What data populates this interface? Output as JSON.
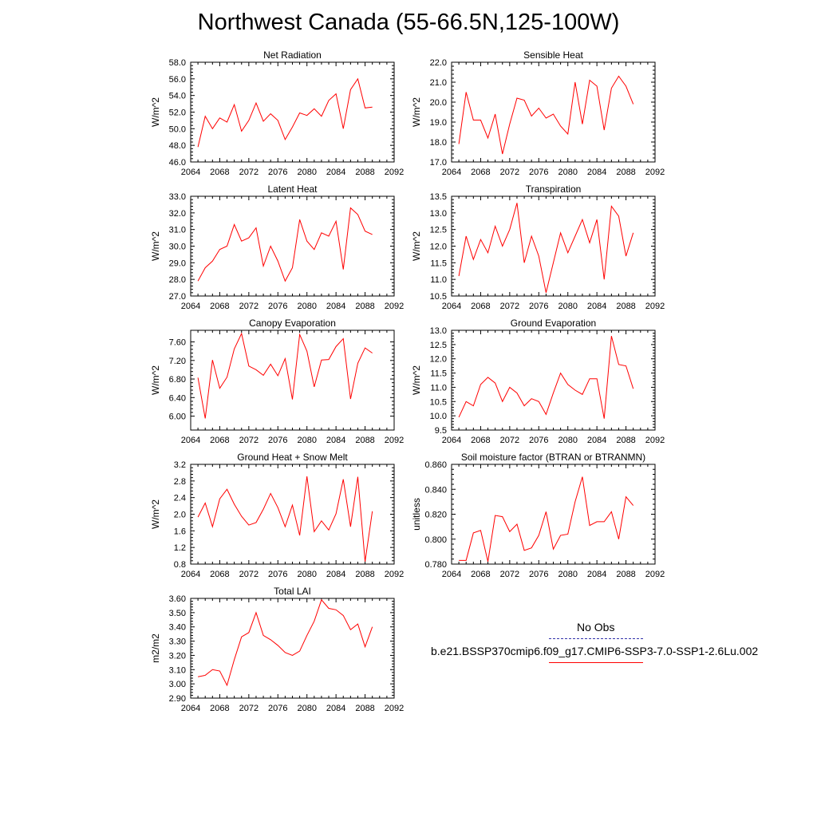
{
  "title": "Northwest Canada (55-66.5N,125-100W)",
  "legend": {
    "obs_label": "No Obs",
    "obs_color": "#3333aa",
    "model_label": "b.e21.BSSP370cmip6.f09_g17.CMIP6-SSP3-7.0-SSP1-2.6Lu.002",
    "model_color": "#ff0000"
  },
  "chart_data": [
    {
      "type": "line",
      "title": "Net Radiation",
      "ylabel": "W/m^2",
      "xlim": [
        2064,
        2092
      ],
      "xticks": [
        "2064",
        "2068",
        "2072",
        "2076",
        "2080",
        "2084",
        "2088",
        "2092"
      ],
      "ylim": [
        46.0,
        58.0
      ],
      "yticks": [
        "46.0",
        "48.0",
        "50.0",
        "52.0",
        "54.0",
        "56.0",
        "58.0"
      ],
      "x": [
        2065,
        2066,
        2067,
        2068,
        2069,
        2070,
        2071,
        2072,
        2073,
        2074,
        2075,
        2076,
        2077,
        2078,
        2079,
        2080,
        2081,
        2082,
        2083,
        2084,
        2085,
        2086,
        2087,
        2088,
        2089
      ],
      "series": [
        {
          "values": [
            47.8,
            51.5,
            50.0,
            51.3,
            50.8,
            52.9,
            49.7,
            51.0,
            53.1,
            50.9,
            51.8,
            51.0,
            48.7,
            50.2,
            51.9,
            51.6,
            52.4,
            51.5,
            53.4,
            54.2,
            50.0,
            54.7,
            56.0,
            52.5,
            52.6
          ],
          "color": "#ff0000"
        }
      ]
    },
    {
      "type": "line",
      "title": "Sensible Heat",
      "ylabel": "W/m^2",
      "xlim": [
        2064,
        2092
      ],
      "xticks": [
        "2064",
        "2068",
        "2072",
        "2076",
        "2080",
        "2084",
        "2088",
        "2092"
      ],
      "ylim": [
        17.0,
        22.0
      ],
      "yticks": [
        "17.0",
        "18.0",
        "19.0",
        "20.0",
        "21.0",
        "22.0"
      ],
      "x": [
        2065,
        2066,
        2067,
        2068,
        2069,
        2070,
        2071,
        2072,
        2073,
        2074,
        2075,
        2076,
        2077,
        2078,
        2079,
        2080,
        2081,
        2082,
        2083,
        2084,
        2085,
        2086,
        2087,
        2088,
        2089
      ],
      "series": [
        {
          "values": [
            17.9,
            20.5,
            19.1,
            19.1,
            18.2,
            19.4,
            17.4,
            18.9,
            20.2,
            20.1,
            19.3,
            19.7,
            19.2,
            19.4,
            18.8,
            18.4,
            21.0,
            18.9,
            21.1,
            20.8,
            18.6,
            20.7,
            21.3,
            20.8,
            19.9
          ],
          "color": "#ff0000"
        }
      ]
    },
    {
      "type": "line",
      "title": "Latent Heat",
      "ylabel": "W/m^2",
      "xlim": [
        2064,
        2092
      ],
      "xticks": [
        "2064",
        "2068",
        "2072",
        "2076",
        "2080",
        "2084",
        "2088",
        "2092"
      ],
      "ylim": [
        27.0,
        33.0
      ],
      "yticks": [
        "27.0",
        "28.0",
        "29.0",
        "30.0",
        "31.0",
        "32.0",
        "33.0"
      ],
      "x": [
        2065,
        2066,
        2067,
        2068,
        2069,
        2070,
        2071,
        2072,
        2073,
        2074,
        2075,
        2076,
        2077,
        2078,
        2079,
        2080,
        2081,
        2082,
        2083,
        2084,
        2085,
        2086,
        2087,
        2088,
        2089
      ],
      "series": [
        {
          "values": [
            27.9,
            28.7,
            29.1,
            29.8,
            30.0,
            31.3,
            30.3,
            30.5,
            31.1,
            28.8,
            30.0,
            29.1,
            27.9,
            28.7,
            31.6,
            30.3,
            29.8,
            30.8,
            30.6,
            31.5,
            28.6,
            32.3,
            31.9,
            30.9,
            30.7
          ],
          "color": "#ff0000"
        }
      ]
    },
    {
      "type": "line",
      "title": "Transpiration",
      "ylabel": "W/m^2",
      "xlim": [
        2064,
        2092
      ],
      "xticks": [
        "2064",
        "2068",
        "2072",
        "2076",
        "2080",
        "2084",
        "2088",
        "2092"
      ],
      "ylim": [
        10.5,
        13.5
      ],
      "yticks": [
        "10.5",
        "11.0",
        "11.5",
        "12.0",
        "12.5",
        "13.0",
        "13.5"
      ],
      "x": [
        2065,
        2066,
        2067,
        2068,
        2069,
        2070,
        2071,
        2072,
        2073,
        2074,
        2075,
        2076,
        2077,
        2078,
        2079,
        2080,
        2081,
        2082,
        2083,
        2084,
        2085,
        2086,
        2087,
        2088,
        2089
      ],
      "series": [
        {
          "values": [
            11.1,
            12.3,
            11.6,
            12.2,
            11.8,
            12.6,
            12.0,
            12.5,
            13.3,
            11.5,
            12.3,
            11.7,
            10.6,
            11.5,
            12.4,
            11.8,
            12.3,
            12.8,
            12.1,
            12.8,
            11.0,
            13.2,
            12.9,
            11.7,
            12.4
          ],
          "color": "#ff0000"
        }
      ]
    },
    {
      "type": "line",
      "title": "Canopy Evaporation",
      "ylabel": "W/m^2",
      "xlim": [
        2064,
        2092
      ],
      "xticks": [
        "2064",
        "2068",
        "2072",
        "2076",
        "2080",
        "2084",
        "2088",
        "2092"
      ],
      "ylim": [
        5.7,
        7.85
      ],
      "yticks": [
        "6.00",
        "6.40",
        "6.80",
        "7.20",
        "7.60"
      ],
      "ytick_values": [
        6.0,
        6.4,
        6.8,
        7.2,
        7.6
      ],
      "x": [
        2065,
        2066,
        2067,
        2068,
        2069,
        2070,
        2071,
        2072,
        2073,
        2074,
        2075,
        2076,
        2077,
        2078,
        2079,
        2080,
        2081,
        2082,
        2083,
        2084,
        2085,
        2086,
        2087,
        2088,
        2089
      ],
      "series": [
        {
          "values": [
            6.83,
            5.95,
            7.21,
            6.6,
            6.84,
            7.45,
            7.78,
            7.08,
            7.0,
            6.88,
            7.12,
            6.87,
            7.24,
            6.36,
            7.76,
            7.4,
            6.63,
            7.21,
            7.22,
            7.5,
            7.67,
            6.37,
            7.14,
            7.47,
            7.36
          ],
          "color": "#ff0000"
        }
      ]
    },
    {
      "type": "line",
      "title": "Ground Evaporation",
      "ylabel": "W/m^2",
      "xlim": [
        2064,
        2092
      ],
      "xticks": [
        "2064",
        "2068",
        "2072",
        "2076",
        "2080",
        "2084",
        "2088",
        "2092"
      ],
      "ylim": [
        9.5,
        13.0
      ],
      "yticks": [
        "9.5",
        "10.0",
        "10.5",
        "11.0",
        "11.5",
        "12.0",
        "12.5",
        "13.0"
      ],
      "x": [
        2065,
        2066,
        2067,
        2068,
        2069,
        2070,
        2071,
        2072,
        2073,
        2074,
        2075,
        2076,
        2077,
        2078,
        2079,
        2080,
        2081,
        2082,
        2083,
        2084,
        2085,
        2086,
        2087,
        2088,
        2089
      ],
      "series": [
        {
          "values": [
            9.95,
            10.5,
            10.35,
            11.1,
            11.35,
            11.15,
            10.5,
            11.0,
            10.8,
            10.35,
            10.6,
            10.5,
            10.05,
            10.8,
            11.5,
            11.1,
            10.9,
            10.75,
            11.3,
            11.3,
            9.9,
            12.8,
            11.8,
            11.75,
            10.95
          ],
          "color": "#ff0000"
        }
      ]
    },
    {
      "type": "line",
      "title": "Ground Heat + Snow Melt",
      "ylabel": "W/m^2",
      "xlim": [
        2064,
        2092
      ],
      "xticks": [
        "2064",
        "2068",
        "2072",
        "2076",
        "2080",
        "2084",
        "2088",
        "2092"
      ],
      "ylim": [
        0.8,
        3.2
      ],
      "yticks": [
        "0.8",
        "1.2",
        "1.6",
        "2.0",
        "2.4",
        "2.8",
        "3.2"
      ],
      "x": [
        2065,
        2066,
        2067,
        2068,
        2069,
        2070,
        2071,
        2072,
        2073,
        2074,
        2075,
        2076,
        2077,
        2078,
        2079,
        2080,
        2081,
        2082,
        2083,
        2084,
        2085,
        2086,
        2087,
        2088,
        2089
      ],
      "series": [
        {
          "values": [
            1.93,
            2.27,
            1.7,
            2.37,
            2.6,
            2.24,
            1.95,
            1.74,
            1.8,
            2.12,
            2.5,
            2.16,
            1.7,
            2.22,
            1.49,
            2.91,
            1.58,
            1.84,
            1.62,
            2.01,
            2.84,
            1.7,
            2.9,
            0.86,
            2.07
          ],
          "color": "#ff0000"
        }
      ]
    },
    {
      "type": "line",
      "title": "Soil moisture factor (BTRAN or BTRANMN)",
      "ylabel": "unitless",
      "xlim": [
        2064,
        2092
      ],
      "xticks": [
        "2064",
        "2068",
        "2072",
        "2076",
        "2080",
        "2084",
        "2088",
        "2092"
      ],
      "ylim": [
        0.78,
        0.86
      ],
      "yticks": [
        "0.780",
        "0.800",
        "0.820",
        "0.840",
        "0.860"
      ],
      "x": [
        2065,
        2066,
        2067,
        2068,
        2069,
        2070,
        2071,
        2072,
        2073,
        2074,
        2075,
        2076,
        2077,
        2078,
        2079,
        2080,
        2081,
        2082,
        2083,
        2084,
        2085,
        2086,
        2087,
        2088,
        2089
      ],
      "series": [
        {
          "values": [
            0.783,
            0.783,
            0.805,
            0.807,
            0.782,
            0.819,
            0.818,
            0.806,
            0.812,
            0.791,
            0.793,
            0.803,
            0.822,
            0.792,
            0.803,
            0.804,
            0.83,
            0.85,
            0.811,
            0.814,
            0.814,
            0.822,
            0.8,
            0.834,
            0.827
          ],
          "color": "#ff0000"
        }
      ]
    },
    {
      "type": "line",
      "title": "Total LAI",
      "ylabel": "m2/m2",
      "xlim": [
        2064,
        2092
      ],
      "xticks": [
        "2064",
        "2068",
        "2072",
        "2076",
        "2080",
        "2084",
        "2088",
        "2092"
      ],
      "ylim": [
        2.9,
        3.6
      ],
      "yticks": [
        "2.90",
        "3.00",
        "3.10",
        "3.20",
        "3.30",
        "3.40",
        "3.50",
        "3.60"
      ],
      "x": [
        2065,
        2066,
        2067,
        2068,
        2069,
        2070,
        2071,
        2072,
        2073,
        2074,
        2075,
        2076,
        2077,
        2078,
        2079,
        2080,
        2081,
        2082,
        2083,
        2084,
        2085,
        2086,
        2087,
        2088,
        2089
      ],
      "series": [
        {
          "values": [
            3.05,
            3.06,
            3.1,
            3.09,
            2.99,
            3.17,
            3.33,
            3.36,
            3.5,
            3.34,
            3.31,
            3.27,
            3.22,
            3.2,
            3.23,
            3.34,
            3.44,
            3.59,
            3.53,
            3.52,
            3.48,
            3.38,
            3.42,
            3.26,
            3.4
          ],
          "color": "#ff0000"
        }
      ]
    }
  ]
}
